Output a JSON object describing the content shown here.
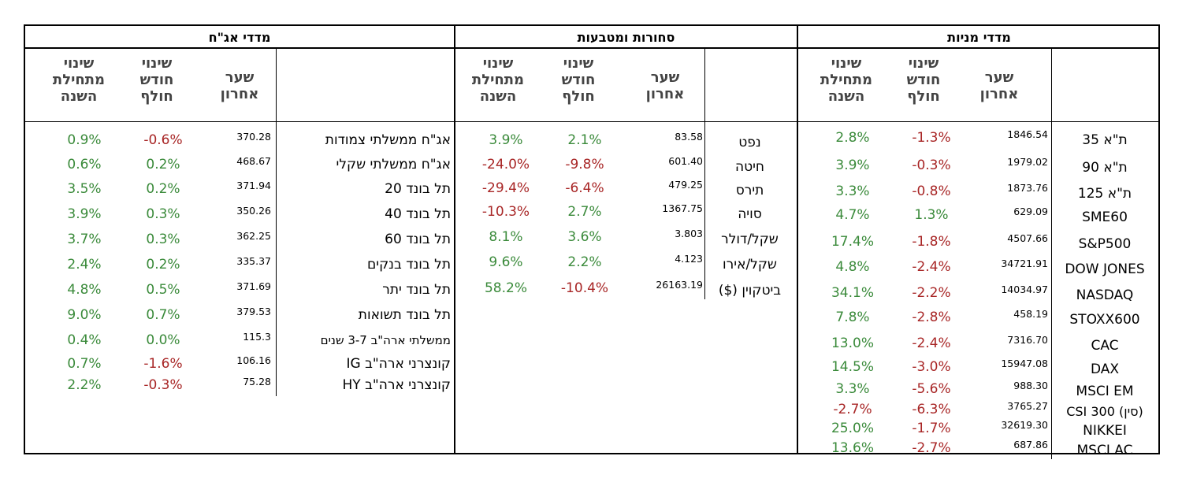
{
  "headers": {
    "last": "שער אחרון",
    "month": "שינוי חודש חולף",
    "ytd": "שינוי מתחילת השנה"
  },
  "colors": {
    "positive": "#3a8a3a",
    "negative": "#a82626"
  },
  "sections": [
    {
      "id": "stocks",
      "title": "מדדי מניות",
      "rows": [
        {
          "name": "ת\"א 35",
          "last": "1846.54",
          "month": "-1.3%",
          "ytd": "2.8%"
        },
        {
          "name": "ת\"א 90",
          "last": "1979.02",
          "month": "-0.3%",
          "ytd": "3.9%"
        },
        {
          "name": "ת\"א 125",
          "last": "1873.76",
          "month": "-0.8%",
          "ytd": "3.3%"
        },
        {
          "name": "SME60",
          "last": "629.09",
          "month": "1.3%",
          "ytd": "4.7%"
        },
        {
          "name": "S&P500",
          "last": "4507.66",
          "month": "-1.8%",
          "ytd": "17.4%"
        },
        {
          "name": "DOW JONES",
          "last": "34721.91",
          "month": "-2.4%",
          "ytd": "4.8%"
        },
        {
          "name": "NASDAQ",
          "last": "14034.97",
          "month": "-2.2%",
          "ytd": "34.1%"
        },
        {
          "name": "STOXX600",
          "last": "458.19",
          "month": "-2.8%",
          "ytd": "7.8%"
        },
        {
          "name": "CAC",
          "last": "7316.70",
          "month": "-2.4%",
          "ytd": "13.0%"
        },
        {
          "name": "DAX",
          "last": "15947.08",
          "month": "-3.0%",
          "ytd": "14.5%"
        },
        {
          "name": "MSCI EM",
          "last": "988.30",
          "month": "-5.6%",
          "ytd": "3.3%"
        },
        {
          "name": "(סין) CSI 300",
          "last": "3765.27",
          "month": "-6.3%",
          "ytd": "-2.7%"
        },
        {
          "name": "NIKKEI",
          "last": "32619.30",
          "month": "-1.7%",
          "ytd": "25.0%"
        },
        {
          "name": "MSCI AC",
          "last": "687.86",
          "month": "-2.7%",
          "ytd": "13.6%"
        }
      ]
    },
    {
      "id": "commodities",
      "title": "סחורות ומטבעות",
      "rows": [
        {
          "name": "נפט",
          "last": "83.58",
          "month": "2.1%",
          "ytd": "3.9%"
        },
        {
          "name": "חיטה",
          "last": "601.40",
          "month": "-9.8%",
          "ytd": "-24.0%"
        },
        {
          "name": "תירס",
          "last": "479.25",
          "month": "-6.4%",
          "ytd": "-29.4%"
        },
        {
          "name": "סויה",
          "last": "1367.75",
          "month": "2.7%",
          "ytd": "-10.3%"
        },
        {
          "name": "שקל/דולר",
          "last": "3.803",
          "month": "3.6%",
          "ytd": "8.1%"
        },
        {
          "name": "שקל/אירו",
          "last": "4.123",
          "month": "2.2%",
          "ytd": "9.6%"
        },
        {
          "name": "ביטקוין ($)",
          "last": "26163.19",
          "month": "-10.4%",
          "ytd": "58.2%"
        }
      ]
    },
    {
      "id": "bonds",
      "title": "מדדי אג\"ח",
      "rows": [
        {
          "name": "אג\"ח ממשלתי צמודות",
          "last": "370.28",
          "month": "-0.6%",
          "ytd": "0.9%"
        },
        {
          "name": "אג\"ח ממשלתי שקלי",
          "last": "468.67",
          "month": "0.2%",
          "ytd": "0.6%"
        },
        {
          "name": "תל בונד 20",
          "last": "371.94",
          "month": "0.2%",
          "ytd": "3.5%"
        },
        {
          "name": "תל בונד 40",
          "last": "350.26",
          "month": "0.3%",
          "ytd": "3.9%"
        },
        {
          "name": "תל בונד 60",
          "last": "362.25",
          "month": "0.3%",
          "ytd": "3.7%"
        },
        {
          "name": "תל בונד בנקים",
          "last": "335.37",
          "month": "0.2%",
          "ytd": "2.4%"
        },
        {
          "name": "תל בונד יתר",
          "last": "371.69",
          "month": "0.5%",
          "ytd": "4.8%"
        },
        {
          "name": "תל בונד תשואות",
          "last": "379.53",
          "month": "0.7%",
          "ytd": "9.0%"
        },
        {
          "name": "ממשלתי ארה\"ב 3-7 שנים",
          "last": "115.3",
          "month": "0.0%",
          "ytd": "0.4%"
        },
        {
          "name": "קונצרני ארה\"ב IG",
          "last": "106.16",
          "month": "-1.6%",
          "ytd": "0.7%"
        },
        {
          "name": "קונצרני ארה\"ב HY",
          "last": "75.28",
          "month": "-0.3%",
          "ytd": "2.2%"
        }
      ]
    }
  ]
}
